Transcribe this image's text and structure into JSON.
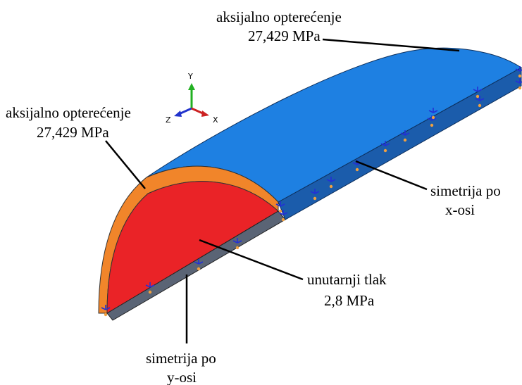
{
  "labels": {
    "axial_right": {
      "line1": "aksijalno opterećenje",
      "line2": "27,429 MPa"
    },
    "axial_left": {
      "line1": "aksijalno opterećenje",
      "line2": "27,429 MPa"
    },
    "symmetry_x": {
      "line1": "simetrija po",
      "line2": "x-osi"
    },
    "internal_pressure": {
      "line1": "unutarnji tlak",
      "line2": "2,8 MPa"
    },
    "symmetry_y": {
      "line1": "simetrija po",
      "line2": "y-osi"
    }
  },
  "triad": {
    "y": "Y",
    "z": "Z",
    "x": "X"
  },
  "colors": {
    "outer_surface": "#1e7fe3",
    "side_face": "#1a5fae",
    "edge_band": "#f0852b",
    "inner_face": "#ea2226",
    "bc_markers": "#2330d6",
    "bc_anchor": "#f0a040"
  }
}
